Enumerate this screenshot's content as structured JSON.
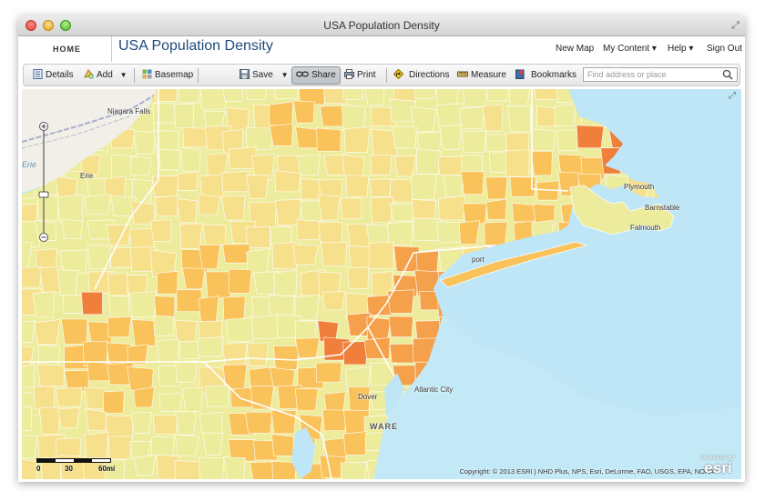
{
  "window": {
    "title": "USA Population Density"
  },
  "header": {
    "home": "HOME",
    "map_title": "USA Population Density",
    "nav": [
      "New Map",
      "My Content ▾",
      "Help ▾",
      "Sign Out"
    ]
  },
  "toolbar": {
    "details": "Details",
    "add": "Add",
    "basemap": "Basemap",
    "save": "Save",
    "share": "Share",
    "print": "Print",
    "directions": "Directions",
    "measure": "Measure",
    "bookmarks": "Bookmarks",
    "search_placeholder": "Find address or place"
  },
  "map": {
    "labels": {
      "niagara": "Niagara Falls",
      "erie_lake": "Erie",
      "erie_city": "Erie",
      "plymouth": "Plymouth",
      "barnstable": "Barnstable",
      "falmouth": "Falmouth",
      "port": "port",
      "atlantic_city": "Atlantic City",
      "dover": "Dover",
      "ware": "WARE"
    },
    "scale": {
      "zero": "0",
      "mid": "30",
      "end": "60mi"
    },
    "copyright": "Copyright: © 2013 ESRI | NHD Plus, NPS, Esri, DeLorme, FAO, USGS, EPA, NOAA",
    "esri_powered": "POWERED BY",
    "esri_logo": "esri",
    "colors": {
      "water": "#bfe6f6",
      "low": "#ecec9c",
      "low2": "#f6e08c",
      "mid": "#f9c25a",
      "midhigh": "#f5a04a",
      "high": "#ef7f3a",
      "veryhigh": "#d8402a",
      "max": "#a01828",
      "land_outside": "#f2efe9"
    }
  }
}
